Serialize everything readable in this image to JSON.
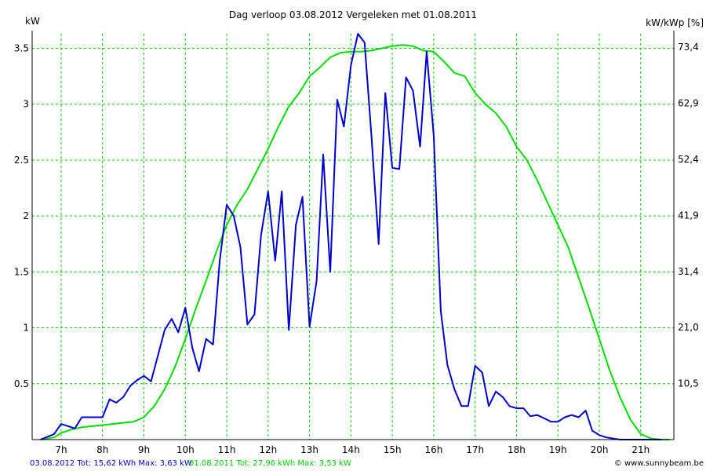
{
  "chart_data": {
    "type": "line",
    "title": "Dag  verloop 03.08.2012   Vergeleken met 01.08.2011",
    "ylabel_left": "kW",
    "ylabel_right": "kW/kWp [%]",
    "xlim": [
      6.3,
      21.8
    ],
    "ylim_left": [
      0,
      3.63
    ],
    "ylim_right": [
      0,
      75.9
    ],
    "x_ticks": [
      {
        "value": 7,
        "label": "7h"
      },
      {
        "value": 8,
        "label": "8h"
      },
      {
        "value": 9,
        "label": "9h"
      },
      {
        "value": 10,
        "label": "10h"
      },
      {
        "value": 11,
        "label": "11h"
      },
      {
        "value": 12,
        "label": "12h"
      },
      {
        "value": 13,
        "label": "13h"
      },
      {
        "value": 14,
        "label": "14h"
      },
      {
        "value": 15,
        "label": "15h"
      },
      {
        "value": 16,
        "label": "16h"
      },
      {
        "value": 17,
        "label": "17h"
      },
      {
        "value": 18,
        "label": "18h"
      },
      {
        "value": 19,
        "label": "19h"
      },
      {
        "value": 20,
        "label": "20h"
      },
      {
        "value": 21,
        "label": "21h"
      }
    ],
    "y_ticks_left": [
      {
        "value": 0.5,
        "label": "0.5"
      },
      {
        "value": 1,
        "label": "1"
      },
      {
        "value": 1.5,
        "label": "1.5"
      },
      {
        "value": 2,
        "label": "2"
      },
      {
        "value": 2.5,
        "label": "2.5"
      },
      {
        "value": 3,
        "label": "3"
      },
      {
        "value": 3.5,
        "label": "3.5"
      }
    ],
    "y_ticks_right": [
      {
        "value": 10.5,
        "label": "10,5"
      },
      {
        "value": 21.0,
        "label": "21,0"
      },
      {
        "value": 31.4,
        "label": "31,4"
      },
      {
        "value": 41.9,
        "label": "41,9"
      },
      {
        "value": 52.4,
        "label": "52,4"
      },
      {
        "value": 62.9,
        "label": "62,9"
      },
      {
        "value": 73.4,
        "label": "73,4"
      }
    ],
    "grid": true,
    "series": [
      {
        "name": "03.08.2012",
        "color": "#0000cc",
        "x": [
          6.5,
          6.83,
          7.0,
          7.17,
          7.33,
          7.5,
          7.67,
          7.83,
          8.0,
          8.17,
          8.33,
          8.5,
          8.67,
          8.83,
          9.0,
          9.17,
          9.33,
          9.5,
          9.67,
          9.83,
          10.0,
          10.17,
          10.33,
          10.5,
          10.67,
          10.83,
          11.0,
          11.17,
          11.33,
          11.5,
          11.67,
          11.83,
          12.0,
          12.17,
          12.33,
          12.5,
          12.67,
          12.83,
          13.0,
          13.17,
          13.33,
          13.5,
          13.67,
          13.83,
          14.0,
          14.17,
          14.33,
          14.5,
          14.67,
          14.83,
          15.0,
          15.17,
          15.33,
          15.5,
          15.67,
          15.83,
          16.0,
          16.17,
          16.33,
          16.5,
          16.67,
          16.83,
          17.0,
          17.17,
          17.33,
          17.5,
          17.67,
          17.83,
          18.0,
          18.17,
          18.33,
          18.5,
          18.67,
          18.83,
          19.0,
          19.17,
          19.33,
          19.5,
          19.67,
          19.83,
          20.0,
          20.17,
          20.33,
          20.5,
          20.67,
          20.83,
          21.0,
          21.17,
          21.33,
          21.5
        ],
        "values": [
          0.0,
          0.05,
          0.14,
          0.12,
          0.1,
          0.2,
          0.2,
          0.2,
          0.2,
          0.36,
          0.33,
          0.38,
          0.48,
          0.53,
          0.57,
          0.52,
          0.74,
          0.98,
          1.08,
          0.96,
          1.18,
          0.82,
          0.61,
          0.9,
          0.85,
          1.6,
          2.1,
          2.0,
          1.72,
          1.03,
          1.12,
          1.83,
          2.22,
          1.6,
          2.22,
          0.98,
          1.92,
          2.17,
          1.01,
          1.42,
          2.55,
          1.5,
          3.04,
          2.8,
          3.35,
          3.63,
          3.55,
          2.7,
          1.75,
          3.1,
          2.43,
          2.42,
          3.24,
          3.12,
          2.62,
          3.47,
          2.72,
          1.15,
          0.67,
          0.45,
          0.3,
          0.3,
          0.66,
          0.6,
          0.3,
          0.43,
          0.38,
          0.3,
          0.28,
          0.28,
          0.21,
          0.22,
          0.19,
          0.16,
          0.16,
          0.2,
          0.22,
          0.2,
          0.26,
          0.08,
          0.04,
          0.02,
          0.01,
          0.0,
          0.0,
          0.0,
          0.0,
          0.0,
          0.0,
          0.0
        ]
      },
      {
        "name": "01.08.2011",
        "color": "#00dd00",
        "x": [
          6.5,
          6.83,
          7.0,
          7.25,
          7.5,
          7.75,
          8.0,
          8.25,
          8.5,
          8.75,
          9.0,
          9.25,
          9.5,
          9.75,
          10.0,
          10.25,
          10.5,
          10.75,
          11.0,
          11.25,
          11.5,
          11.75,
          12.0,
          12.25,
          12.5,
          12.75,
          13.0,
          13.25,
          13.5,
          13.75,
          14.0,
          14.25,
          14.5,
          14.75,
          15.0,
          15.25,
          15.5,
          15.75,
          16.0,
          16.25,
          16.5,
          16.75,
          17.0,
          17.25,
          17.5,
          17.75,
          18.0,
          18.25,
          18.5,
          18.75,
          19.0,
          19.25,
          19.5,
          19.75,
          20.0,
          20.25,
          20.5,
          20.75,
          21.0,
          21.25,
          21.5,
          21.7
        ],
        "values": [
          0.0,
          0.02,
          0.06,
          0.09,
          0.11,
          0.12,
          0.13,
          0.14,
          0.15,
          0.16,
          0.2,
          0.3,
          0.45,
          0.65,
          0.9,
          1.17,
          1.42,
          1.68,
          1.92,
          2.1,
          2.24,
          2.42,
          2.6,
          2.8,
          2.98,
          3.1,
          3.25,
          3.33,
          3.42,
          3.46,
          3.47,
          3.47,
          3.48,
          3.5,
          3.52,
          3.53,
          3.52,
          3.48,
          3.47,
          3.38,
          3.28,
          3.25,
          3.1,
          3.0,
          2.92,
          2.8,
          2.62,
          2.5,
          2.32,
          2.12,
          1.92,
          1.72,
          1.45,
          1.18,
          0.9,
          0.62,
          0.38,
          0.18,
          0.05,
          0.01,
          0.0,
          0.0
        ]
      }
    ],
    "footer": {
      "series1_text": "03.08.2012 Tot: 15,62 kWh Max: 3,63 kW",
      "series2_text": "01.08.2011 Tot: 27,96 kWh Max: 3,53 kW",
      "copyright": "© www.sunnybeam.be"
    }
  }
}
